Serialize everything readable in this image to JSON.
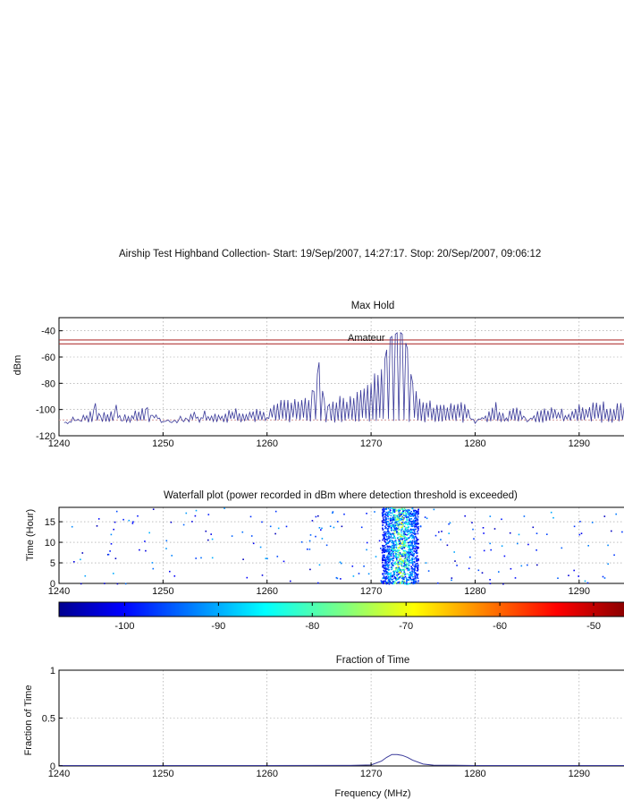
{
  "figure": {
    "title": "Airship Test Highband Collection- Start: 19/Sep/2007, 14:27:17. Stop:  20/Sep/2007, 09:06:12"
  },
  "chart_data": [
    {
      "type": "line",
      "title": "Max Hold",
      "xlabel": "",
      "ylabel": "dBm",
      "xlim": [
        1240,
        1295
      ],
      "ylim": [
        -120,
        -30
      ],
      "xticks": [
        "1240",
        "1250",
        "1260",
        "1270",
        "1280",
        "1290"
      ],
      "yticks": [
        "-40",
        "-60",
        "-80",
        "-100",
        "-120"
      ],
      "grid": true,
      "annotations": [
        {
          "text": "Amateur",
          "x": 1272,
          "y": -47
        }
      ],
      "hlines": [
        {
          "y": -47,
          "color": "#b23a3a"
        },
        {
          "y": -50,
          "color": "#b23a3a"
        },
        {
          "y": -108,
          "color": "#d49a9a",
          "style": "dotted"
        }
      ],
      "series": [
        {
          "color": "#3a3a9a",
          "x": [
            1240.5,
            1241,
            1242,
            1243,
            1243.5,
            1244,
            1245,
            1245.5,
            1246,
            1247,
            1248,
            1248.5,
            1249,
            1250,
            1251,
            1252,
            1253,
            1254,
            1255,
            1256,
            1257,
            1258,
            1259,
            1260,
            1261,
            1262,
            1263,
            1264,
            1264.5,
            1265,
            1265.5,
            1266,
            1267,
            1268,
            1269,
            1270,
            1271,
            1271.5,
            1272,
            1272.5,
            1273,
            1273.5,
            1274,
            1275,
            1276,
            1277,
            1278,
            1279,
            1280,
            1281,
            1282,
            1283,
            1284,
            1285,
            1286,
            1287,
            1288,
            1289,
            1290,
            1291,
            1292,
            1293,
            1294,
            1295
          ],
          "y": [
            -110,
            -109,
            -106,
            -104,
            -98,
            -106,
            -103,
            -99,
            -107,
            -102,
            -101,
            -97,
            -106,
            -108,
            -108,
            -107,
            -104,
            -103,
            -102,
            -103,
            -100,
            -101,
            -102,
            -106,
            -93,
            -95,
            -92,
            -91,
            -85,
            -66,
            -95,
            -96,
            -90,
            -92,
            -86,
            -78,
            -70,
            -55,
            -45,
            -42,
            -44,
            -53,
            -82,
            -93,
            -96,
            -97,
            -94,
            -98,
            -108,
            -102,
            -97,
            -104,
            -100,
            -107,
            -101,
            -98,
            -100,
            -106,
            -97,
            -99,
            -94,
            -98,
            -95,
            -96
          ]
        }
      ]
    },
    {
      "type": "heatmap",
      "title": "Waterfall plot (power recorded in dBm where detection threshold is exceeded)",
      "xlabel": "",
      "ylabel": "Time (Hour)",
      "xlim": [
        1240,
        1295
      ],
      "ylim": [
        0,
        18.5
      ],
      "xticks": [
        "1240",
        "1250",
        "1260",
        "1270",
        "1280",
        "1290"
      ],
      "yticks": [
        "0",
        "5",
        "10",
        "15"
      ],
      "grid": true,
      "dense_band_x": [
        1271,
        1274.5
      ],
      "colorbar": {
        "range": [
          -107,
          -46
        ],
        "ticks": [
          "-100",
          "-90",
          "-80",
          "-70",
          "-60",
          "-50"
        ],
        "colormap": "jet"
      }
    },
    {
      "type": "line",
      "title": "Fraction of Time",
      "xlabel": "Frequency (MHz)",
      "ylabel": "Fraction of Time",
      "xlim": [
        1240,
        1295
      ],
      "ylim": [
        0,
        1
      ],
      "xticks": [
        "1240",
        "1250",
        "1260",
        "1270",
        "1280",
        "1290"
      ],
      "yticks": [
        "1",
        "0.5",
        "0"
      ],
      "grid": true,
      "series": [
        {
          "color": "#3a3a9a",
          "x": [
            1240,
            1250,
            1260,
            1268,
            1270,
            1271,
            1271.5,
            1272,
            1272.5,
            1273,
            1273.5,
            1274,
            1275,
            1276,
            1280,
            1290,
            1295
          ],
          "y": [
            0.005,
            0.005,
            0.005,
            0.006,
            0.01,
            0.05,
            0.09,
            0.12,
            0.12,
            0.11,
            0.09,
            0.06,
            0.02,
            0.008,
            0.005,
            0.005,
            0.005
          ]
        }
      ]
    }
  ]
}
